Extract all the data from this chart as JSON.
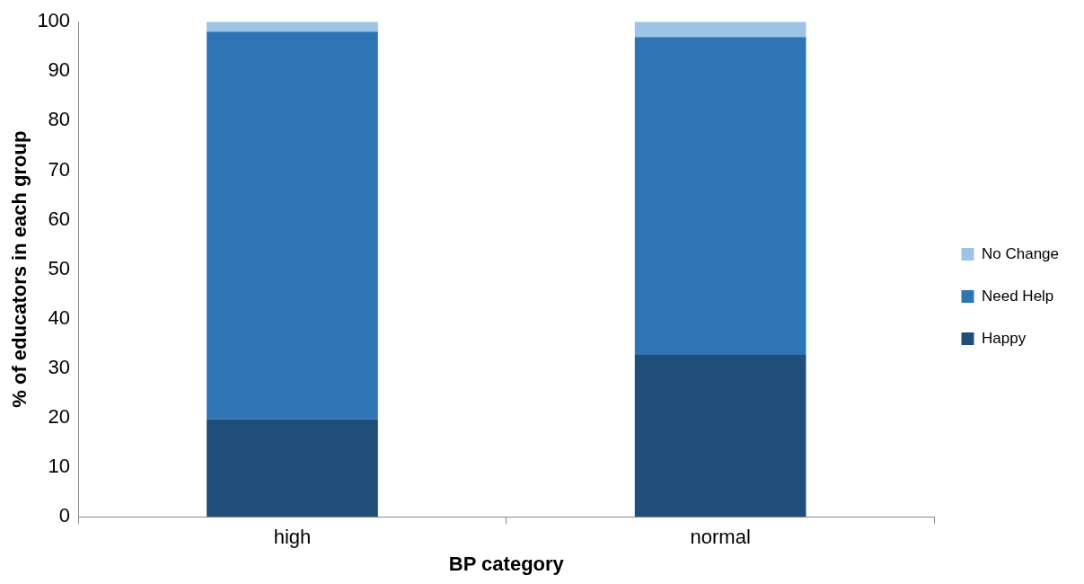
{
  "chart_data": {
    "type": "bar",
    "stacked": true,
    "categories": [
      "high",
      "normal"
    ],
    "series": [
      {
        "name": "Happy",
        "color": "#1f4e79",
        "values": [
          19.7,
          32.7
        ]
      },
      {
        "name": "Need Help",
        "color": "#2e75b6",
        "values": [
          78.3,
          64.2
        ]
      },
      {
        "name": "No Change",
        "color": "#9dc3e6",
        "values": [
          2.0,
          3.1
        ]
      }
    ],
    "xlabel": "BP category",
    "ylabel": "% of educators in each group",
    "ylim": [
      0,
      100
    ],
    "yticks": [
      0,
      10,
      20,
      30,
      40,
      50,
      60,
      70,
      80,
      90,
      100
    ],
    "grid": false,
    "legend": "right"
  }
}
